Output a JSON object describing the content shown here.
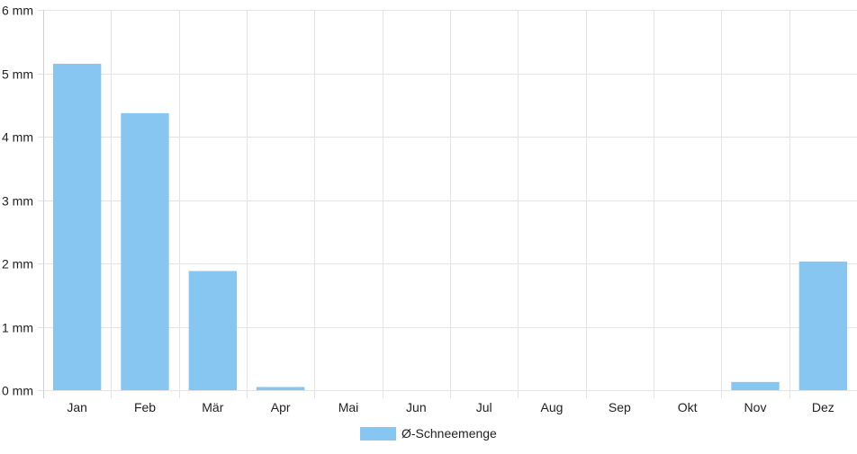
{
  "chart_data": {
    "type": "bar",
    "categories": [
      "Jan",
      "Feb",
      "Mär",
      "Apr",
      "Mai",
      "Jun",
      "Jul",
      "Aug",
      "Sep",
      "Okt",
      "Nov",
      "Dez"
    ],
    "series": [
      {
        "name": "Ø-Schneemenge",
        "values": [
          5.15,
          4.37,
          1.88,
          0.05,
          0,
          0,
          0,
          0,
          0,
          0,
          0.13,
          2.03
        ],
        "color": "#88c6f2"
      }
    ],
    "ylim": [
      0,
      6
    ],
    "yticks": [
      0,
      1,
      2,
      3,
      4,
      5,
      6
    ],
    "ytick_labels": [
      "0 mm",
      "1 mm",
      "2 mm",
      "3 mm",
      "4 mm",
      "5 mm",
      "6 mm"
    ],
    "grid": true,
    "legend_position": "bottom-center"
  }
}
